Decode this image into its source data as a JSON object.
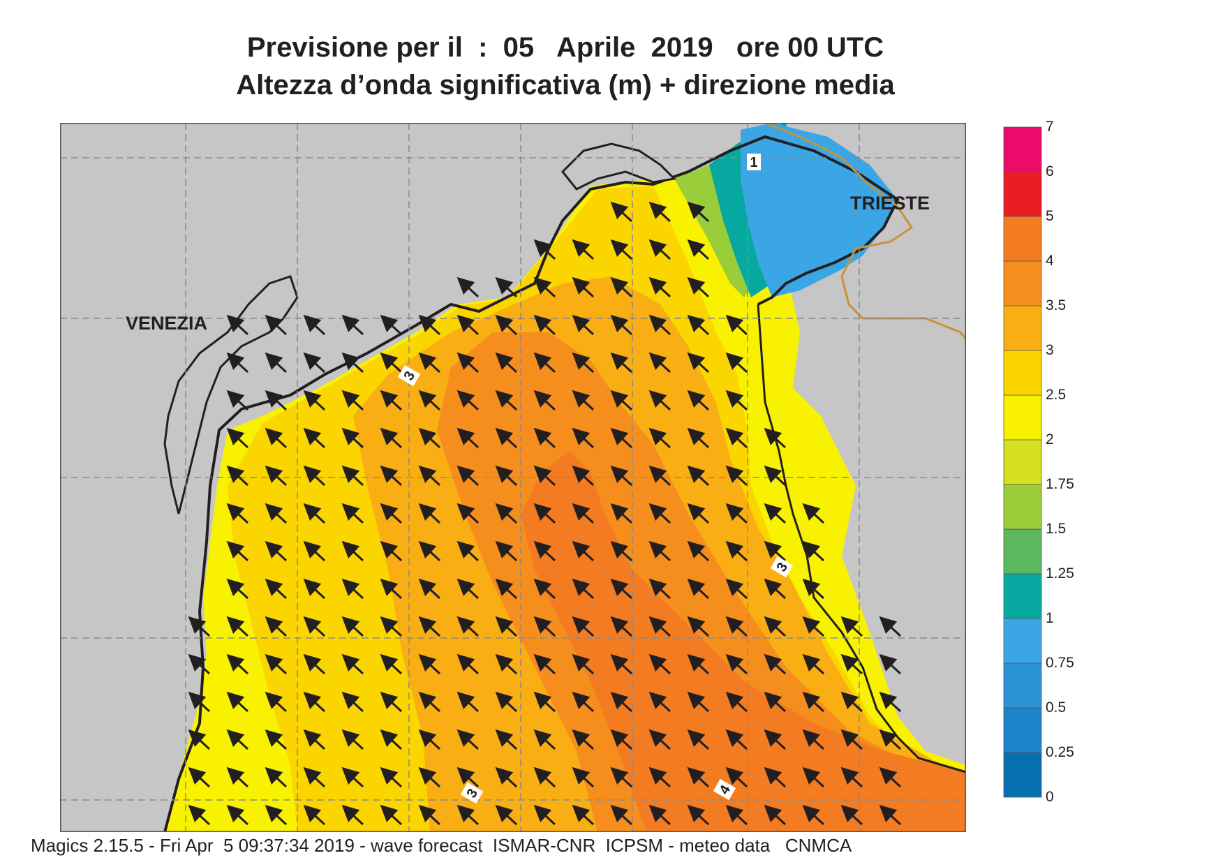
{
  "title": {
    "line1": "Previsione per il  :  05   Aprile  2019   ore 00 UTC",
    "line2": "Altezza d’onda significativa (m) + direzione media"
  },
  "map": {
    "cities": [
      {
        "name": "VENEZIA"
      },
      {
        "name": "TRIESTE"
      }
    ],
    "contour_labels": [
      "3",
      "3",
      "3",
      "4",
      "1"
    ],
    "land_color": "#c6c6c6",
    "coastline_color": "#231f20",
    "border_color": "#c8923b",
    "arrow_color": "#231f20",
    "arrow_direction": "north-west"
  },
  "colorbar": {
    "levels": [
      "0",
      "0.25",
      "0.5",
      "0.75",
      "1",
      "1.25",
      "1.5",
      "1.75",
      "2",
      "2.5",
      "3",
      "3.5",
      "4",
      "5",
      "6",
      "7"
    ],
    "colors": [
      "#0570b0",
      "#1b84c8",
      "#2b92d6",
      "#3ba6e6",
      "#07a89f",
      "#5cb85c",
      "#9acd3a",
      "#d4e020",
      "#f8f200",
      "#fbd500",
      "#f9ae14",
      "#f68e1e",
      "#f37b21",
      "#ec1c24",
      "#ec0b6b"
    ]
  },
  "footer": "Magics 2.15.5 - Fri Apr  5 09:37:34 2019 - wave forecast  ISMAR-CNR  ICPSM - meteo data   CNMCA"
}
